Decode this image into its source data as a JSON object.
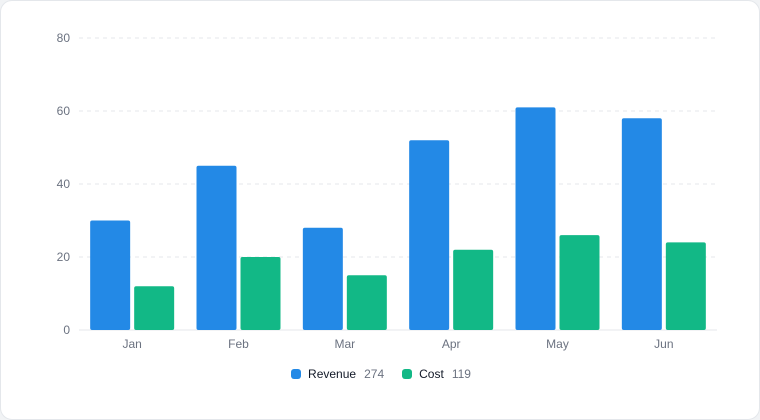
{
  "chart_data": {
    "type": "bar",
    "categories": [
      "Jan",
      "Feb",
      "Mar",
      "Apr",
      "May",
      "Jun"
    ],
    "series": [
      {
        "name": "Revenue",
        "values": [
          30,
          45,
          28,
          52,
          61,
          58
        ],
        "color": "#2389e6",
        "total": "274"
      },
      {
        "name": "Cost",
        "values": [
          12,
          20,
          15,
          22,
          26,
          24
        ],
        "color": "#12b886",
        "total": "119"
      }
    ],
    "y_ticks": [
      "0",
      "20",
      "40",
      "60",
      "80"
    ],
    "ylim": [
      0,
      80
    ],
    "grid": true,
    "legend_position": "bottom-center"
  }
}
